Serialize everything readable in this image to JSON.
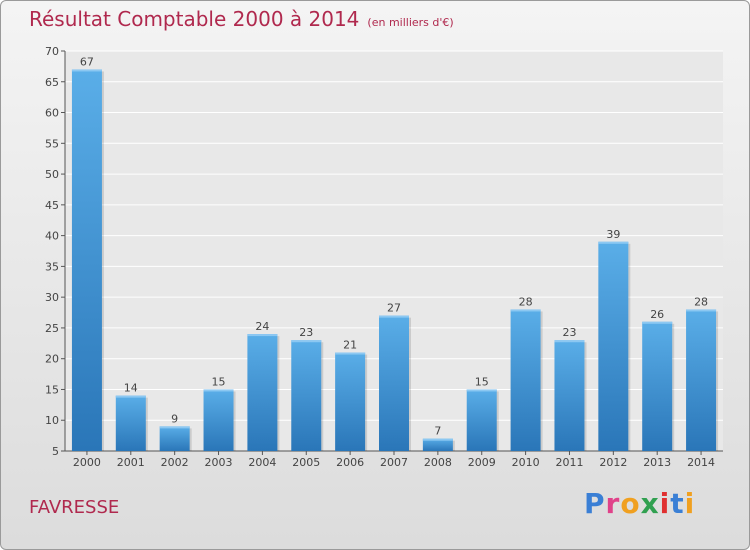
{
  "header": {
    "title": "Résultat Comptable 2000 à 2014",
    "subtitle": "(en milliers d'€)"
  },
  "footer": {
    "place": "FAVRESSE",
    "logo_letters": [
      "P",
      "r",
      "o",
      "x",
      "i",
      "t",
      "i"
    ],
    "logo_colors": [
      "#3a7fd5",
      "#e0428a",
      "#f0a020",
      "#30a050",
      "#e03030",
      "#3a7fd5",
      "#f0a020"
    ]
  },
  "chart_data": {
    "type": "bar",
    "title": "Résultat Comptable 2000 à 2014",
    "subtitle": "(en milliers d'€)",
    "categories": [
      "2000",
      "2001",
      "2002",
      "2003",
      "2004",
      "2005",
      "2006",
      "2007",
      "2008",
      "2009",
      "2010",
      "2011",
      "2012",
      "2013",
      "2014"
    ],
    "values": [
      67,
      14,
      9,
      15,
      24,
      23,
      21,
      27,
      7,
      15,
      28,
      23,
      39,
      26,
      28
    ],
    "ylim": [
      5,
      70
    ],
    "yticks": [
      5,
      10,
      15,
      20,
      25,
      30,
      35,
      40,
      45,
      50,
      55,
      60,
      65,
      70
    ],
    "grid": true,
    "bar_color": "#4a9ee0",
    "xlabel": "",
    "ylabel": ""
  }
}
